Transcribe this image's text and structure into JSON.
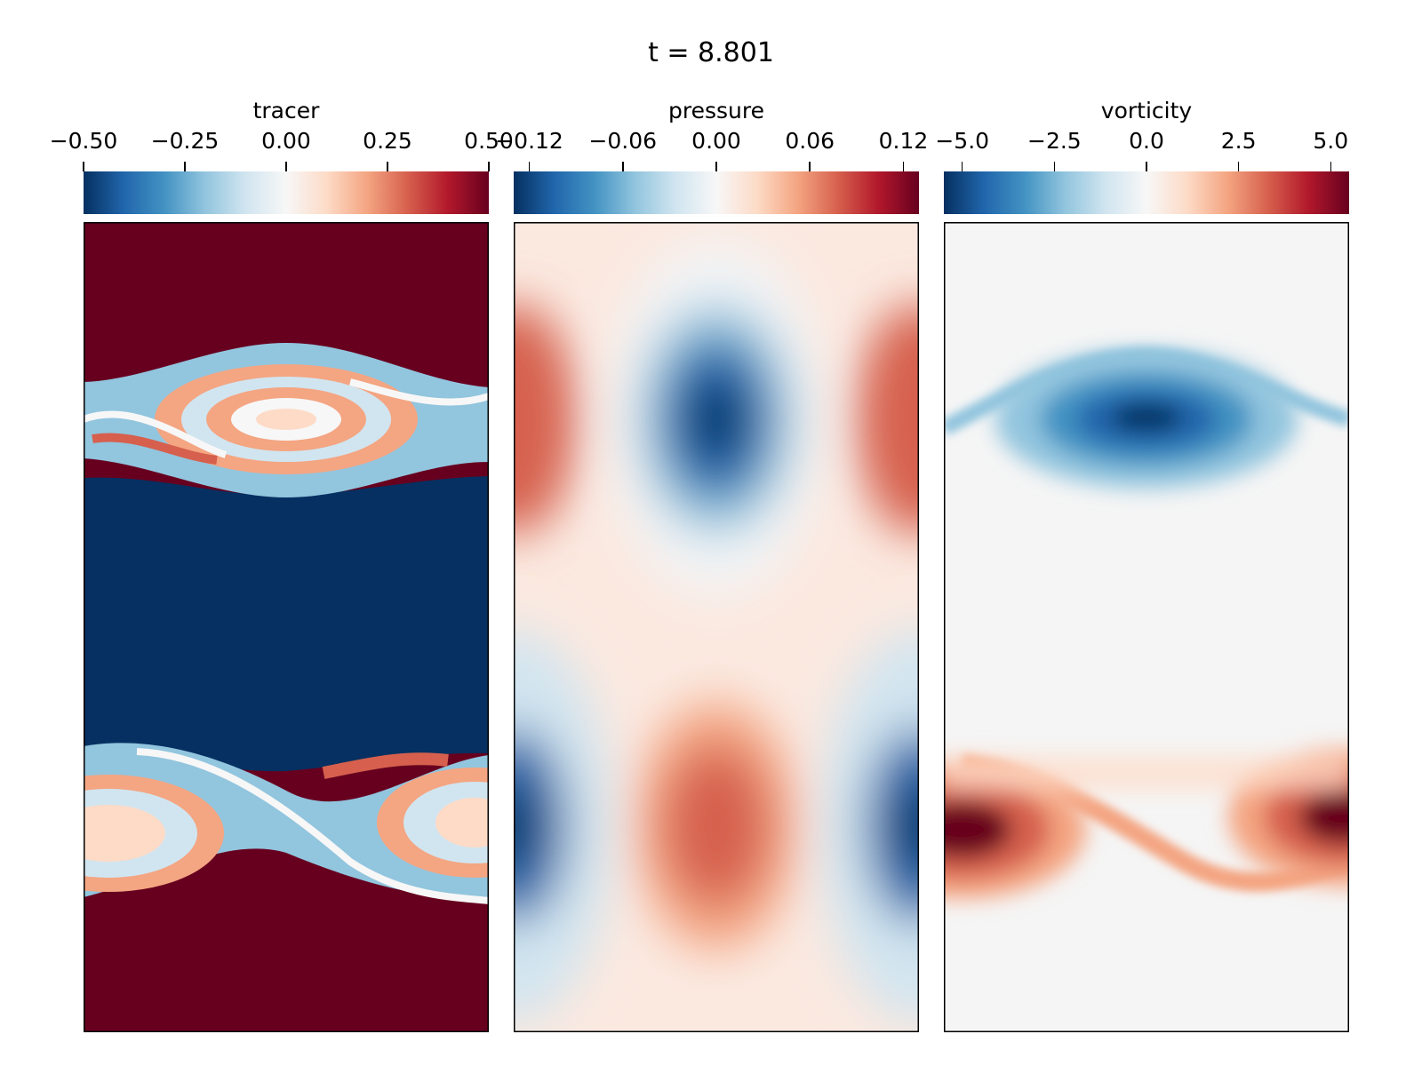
{
  "figure": {
    "title": "t = 8.801"
  },
  "chart_data": [
    {
      "type": "heatmap",
      "name": "tracer",
      "colorbar": {
        "label": "tracer",
        "range": [
          -0.5,
          0.5
        ],
        "ticks": [
          -0.5,
          -0.25,
          0.0,
          0.25,
          0.5
        ],
        "tick_labels": [
          "−0.50",
          "−0.25",
          "0.00",
          "0.25",
          "0.50"
        ],
        "orientation": "horizontal",
        "placement": "top"
      },
      "colormap": "RdBu_r",
      "features": {
        "background_top": 0.5,
        "background_bottom": 0.5,
        "middle_band": -0.5,
        "rolled_vortex_layers": 2
      }
    },
    {
      "type": "heatmap",
      "name": "pressure",
      "colorbar": {
        "label": "pressure",
        "range": [
          -0.13,
          0.13
        ],
        "ticks": [
          -0.12,
          -0.06,
          0.0,
          0.06,
          0.12
        ],
        "tick_labels": [
          "−0.12",
          "−0.06",
          "0.00",
          "0.06",
          "0.12"
        ],
        "orientation": "horizontal",
        "placement": "top"
      },
      "colormap": "RdBu_r",
      "features": {
        "upper_center_min": -0.13,
        "upper_edge_max": 0.09,
        "lower_center_max": 0.09,
        "lower_edge_min": -0.13
      }
    },
    {
      "type": "heatmap",
      "name": "vorticity",
      "colorbar": {
        "label": "vorticity",
        "range": [
          -5.5,
          5.5
        ],
        "ticks": [
          -5.0,
          -2.5,
          0.0,
          2.5,
          5.0
        ],
        "tick_labels": [
          "−5.0",
          "−2.5",
          "0.0",
          "2.5",
          "5.0"
        ],
        "orientation": "horizontal",
        "placement": "top"
      },
      "colormap": "RdBu_r",
      "features": {
        "upper_vortex_min": -5.5,
        "lower_vortex_max": 5.5
      }
    }
  ],
  "colors": {
    "rdbu": [
      "#053061",
      "#2166ac",
      "#4393c3",
      "#92c5de",
      "#d1e5f0",
      "#f7f7f7",
      "#fddbc7",
      "#f4a582",
      "#d6604d",
      "#b2182b",
      "#67001f"
    ]
  }
}
